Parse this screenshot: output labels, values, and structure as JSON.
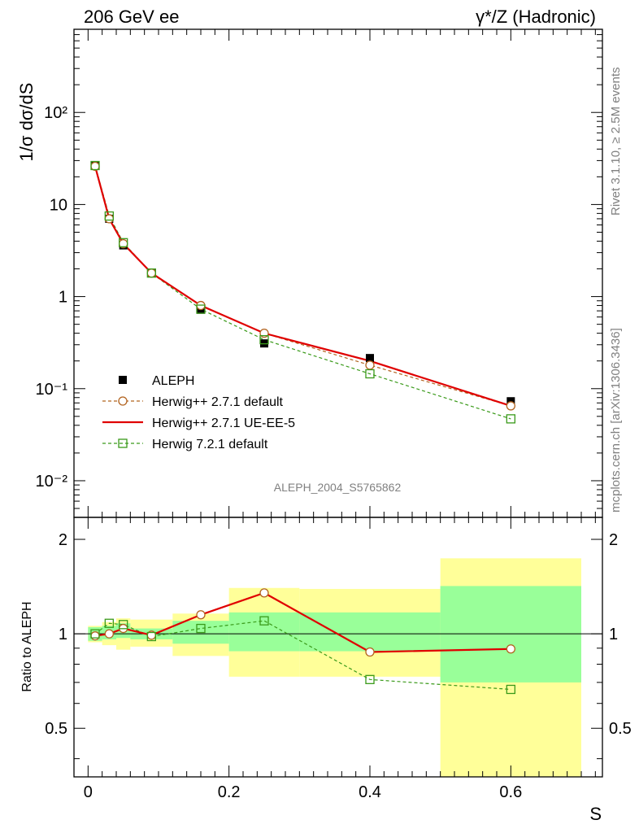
{
  "header": {
    "left": "206 GeV ee",
    "right": "γ*/Z (Hadronic)"
  },
  "side_text": {
    "rivet": "Rivet 3.1.10, ≥ 2.5M events",
    "mcplots": "mcplots.cern.ch [arXiv:1306.3436]"
  },
  "analysis_id": "ALEPH_2004_S5765862",
  "colors": {
    "aleph": "#000000",
    "herwig_default": "#b2631f",
    "herwig_ueee5": "#e00000",
    "herwig72": "#3a9a1a",
    "band_inner": "#99ff99",
    "band_outer": "#ffff99"
  },
  "legend": [
    {
      "key": "aleph",
      "label": "ALEPH"
    },
    {
      "key": "herwig_default",
      "label": "Herwig++ 2.7.1 default"
    },
    {
      "key": "herwig_ueee5",
      "label": "Herwig++ 2.7.1 UE-EE-5"
    },
    {
      "key": "herwig72",
      "label": "Herwig 7.2.1 default"
    }
  ],
  "chart_data": [
    {
      "type": "scatter",
      "ylabel": "1/σ  dσ/dS",
      "yscale": "log",
      "ylim": [
        0.004,
        800
      ],
      "xlim": [
        -0.02,
        0.73
      ],
      "y_ticks": [
        "10⁻²",
        "10⁻¹",
        "1",
        "10",
        "10²"
      ],
      "bins": [
        [
          0.0,
          0.02
        ],
        [
          0.02,
          0.04
        ],
        [
          0.04,
          0.06
        ],
        [
          0.06,
          0.12
        ],
        [
          0.12,
          0.2
        ],
        [
          0.2,
          0.3
        ],
        [
          0.3,
          0.5
        ],
        [
          0.5,
          0.7
        ]
      ],
      "x": [
        0.01,
        0.03,
        0.05,
        0.09,
        0.16,
        0.25,
        0.4,
        0.6
      ],
      "series": [
        {
          "key": "aleph",
          "name": "ALEPH",
          "values": [
            26.5,
            7.0,
            3.6,
            1.8,
            0.72,
            0.31,
            0.215,
            0.073
          ]
        },
        {
          "key": "herwig_default",
          "name": "Herwig++ 2.7.1 default",
          "values": [
            26.0,
            7.0,
            3.75,
            1.8,
            0.8,
            0.4,
            0.18,
            0.065
          ]
        },
        {
          "key": "herwig_ueee5",
          "name": "Herwig++ 2.7.1 UE-EE-5",
          "values": [
            26.0,
            7.0,
            3.75,
            1.8,
            0.8,
            0.4,
            0.2,
            0.065
          ]
        },
        {
          "key": "herwig72",
          "name": "Herwig 7.2.1 default",
          "values": [
            26.5,
            7.5,
            3.85,
            1.8,
            0.73,
            0.34,
            0.145,
            0.047
          ]
        }
      ]
    },
    {
      "type": "line",
      "ylabel": "Ratio to ALEPH",
      "xlabel": "S",
      "ylim": [
        0.35,
        2.35
      ],
      "xlim": [
        -0.02,
        0.73
      ],
      "y_ticks": [
        "0.5",
        "1",
        "2"
      ],
      "x_ticks": [
        "0",
        "0.2",
        "0.4",
        "0.6"
      ],
      "bands": {
        "inner": [
          [
            0.95,
            1.05
          ],
          [
            0.96,
            1.06
          ],
          [
            0.97,
            1.08
          ],
          [
            0.96,
            1.04
          ],
          [
            0.93,
            1.1
          ],
          [
            0.88,
            1.17
          ],
          [
            0.88,
            1.17
          ],
          [
            0.7,
            1.42
          ]
        ],
        "outer": [
          [
            0.94,
            1.06
          ],
          [
            0.92,
            1.09
          ],
          [
            0.89,
            1.12
          ],
          [
            0.91,
            1.11
          ],
          [
            0.85,
            1.16
          ],
          [
            0.73,
            1.4
          ],
          [
            0.73,
            1.39
          ],
          [
            0.32,
            1.74
          ]
        ]
      },
      "series": [
        {
          "key": "herwig_default",
          "name": "Herwig++ 2.7.1 default",
          "values": [
            0.985,
            1.0,
            1.04,
            0.99,
            1.15,
            1.35,
            0.875,
            0.895
          ]
        },
        {
          "key": "herwig_ueee5",
          "name": "Herwig++ 2.7.1 UE-EE-5",
          "values": [
            0.985,
            1.0,
            1.04,
            0.99,
            1.15,
            1.35,
            0.875,
            0.895
          ]
        },
        {
          "key": "herwig72",
          "name": "Herwig 7.2.1 default",
          "values": [
            1.0,
            1.08,
            1.07,
            0.98,
            1.04,
            1.1,
            0.715,
            0.665
          ]
        }
      ]
    }
  ]
}
